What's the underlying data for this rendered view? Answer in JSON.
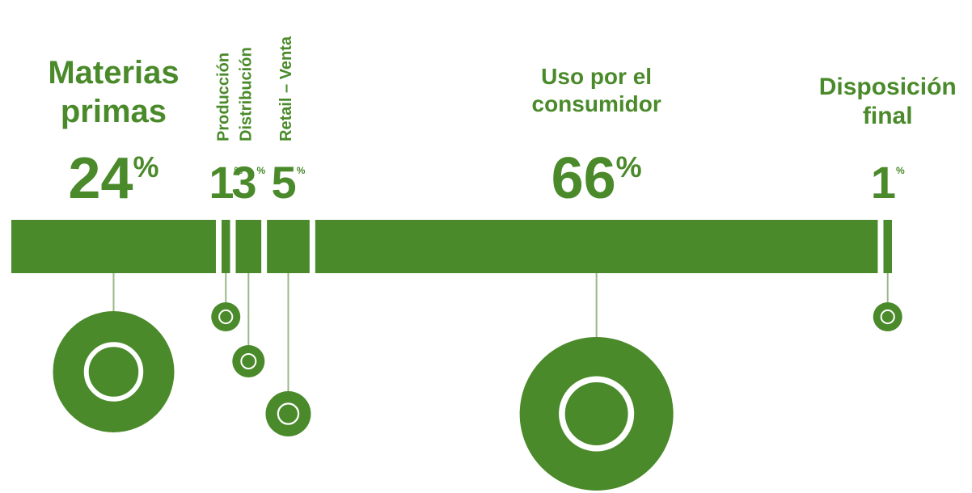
{
  "chart_data": {
    "type": "segmented-bar",
    "categories": [
      "Materias primas",
      "Producción",
      "Distribución",
      "Retail – Venta",
      "Uso por el consumidor",
      "Disposición final"
    ],
    "values": [
      24,
      1,
      3,
      5,
      66,
      1
    ],
    "unit": "%",
    "color": "#4a8a2a"
  }
}
